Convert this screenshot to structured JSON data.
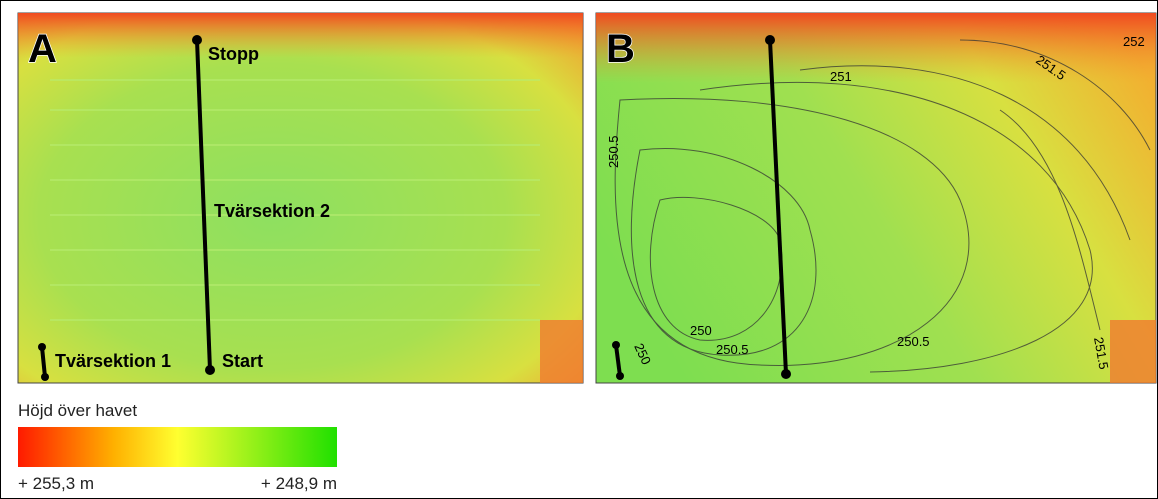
{
  "panels": [
    {
      "label": "A",
      "annotations": [
        "Stopp",
        "Tvärsektion 2",
        "Tvärsektion 1",
        "Start"
      ]
    },
    {
      "label": "B",
      "contour_labels": [
        "252",
        "251",
        "251.5",
        "250.5",
        "250",
        "250",
        "250.5",
        "250.5",
        "251.5"
      ]
    }
  ],
  "legend": {
    "title": "Höjd över havet",
    "high": "+ 255,3 m",
    "low": "+ 248,9 m"
  }
}
